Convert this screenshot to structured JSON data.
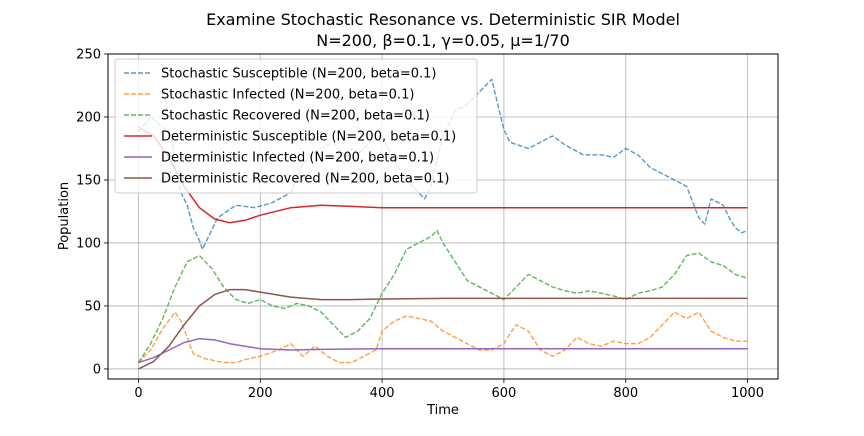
{
  "chart_data": {
    "type": "line",
    "title_line1": "Examine Stochastic Resonance vs. Deterministic SIR Model",
    "title_line2": "N=200, β=0.1, γ=0.05, μ=1/70",
    "xlabel": "Time",
    "ylabel": "Population",
    "xlim": [
      -50,
      1050
    ],
    "ylim": [
      -8,
      250
    ],
    "xticks": [
      0,
      200,
      400,
      600,
      800,
      1000
    ],
    "xtick_labels": [
      "0",
      "200",
      "400",
      "600",
      "800",
      "1000"
    ],
    "yticks": [
      0,
      50,
      100,
      150,
      200,
      250
    ],
    "ytick_labels": [
      "0",
      "50",
      "100",
      "150",
      "200",
      "250"
    ],
    "grid": true,
    "legend_position": "upper-left",
    "series": [
      {
        "name": "Stochastic Susceptible (N=200, beta=0.1)",
        "style": "dashed",
        "color": "#1f77b4",
        "x": [
          0,
          20,
          40,
          55,
          60,
          70,
          80,
          90,
          100,
          105,
          115,
          130,
          160,
          190,
          220,
          250,
          270,
          290,
          300,
          320,
          340,
          350,
          360,
          380,
          400,
          420,
          440,
          460,
          470,
          480,
          500,
          520,
          540,
          560,
          580,
          600,
          610,
          640,
          660,
          680,
          700,
          730,
          760,
          780,
          800,
          820,
          840,
          860,
          880,
          900,
          920,
          930,
          940,
          960,
          970,
          980,
          990,
          1000
        ],
        "values": [
          188,
          200,
          192,
          185,
          160,
          140,
          130,
          112,
          102,
          95,
          105,
          120,
          130,
          128,
          132,
          140,
          163,
          172,
          175,
          180,
          168,
          175,
          170,
          180,
          185,
          165,
          150,
          140,
          135,
          145,
          185,
          205,
          210,
          220,
          230,
          190,
          180,
          175,
          180,
          185,
          178,
          170,
          170,
          168,
          175,
          170,
          160,
          155,
          150,
          145,
          120,
          115,
          135,
          130,
          120,
          112,
          108,
          110
        ]
      },
      {
        "name": "Stochastic Infected (N=200, beta=0.1)",
        "style": "dashed",
        "color": "#ff7f0e",
        "x": [
          0,
          20,
          40,
          60,
          70,
          80,
          90,
          110,
          140,
          160,
          180,
          200,
          230,
          250,
          270,
          290,
          310,
          330,
          350,
          370,
          390,
          400,
          420,
          440,
          460,
          480,
          500,
          520,
          540,
          560,
          580,
          600,
          610,
          620,
          640,
          660,
          680,
          700,
          720,
          740,
          760,
          780,
          800,
          820,
          840,
          860,
          880,
          900,
          920,
          940,
          960,
          980,
          1000
        ],
        "values": [
          5,
          15,
          32,
          45,
          38,
          25,
          12,
          8,
          5,
          5,
          8,
          10,
          15,
          20,
          10,
          18,
          10,
          5,
          5,
          10,
          15,
          30,
          38,
          42,
          40,
          38,
          30,
          25,
          20,
          15,
          15,
          20,
          28,
          35,
          30,
          15,
          10,
          15,
          25,
          20,
          18,
          22,
          20,
          20,
          25,
          35,
          45,
          40,
          45,
          30,
          25,
          22,
          22
        ]
      },
      {
        "name": "Stochastic Recovered (N=200, beta=0.1)",
        "style": "dashed",
        "color": "#2ca02c",
        "x": [
          0,
          20,
          40,
          60,
          80,
          100,
          120,
          140,
          160,
          180,
          200,
          220,
          240,
          260,
          280,
          300,
          320,
          340,
          360,
          380,
          400,
          420,
          440,
          460,
          480,
          490,
          500,
          520,
          540,
          560,
          580,
          600,
          620,
          640,
          660,
          680,
          700,
          720,
          740,
          760,
          780,
          800,
          820,
          840,
          860,
          880,
          900,
          920,
          940,
          960,
          980,
          1000
        ],
        "values": [
          5,
          20,
          40,
          65,
          85,
          90,
          80,
          65,
          55,
          52,
          55,
          50,
          48,
          52,
          50,
          45,
          35,
          25,
          30,
          40,
          60,
          75,
          95,
          100,
          105,
          110,
          100,
          85,
          70,
          65,
          60,
          55,
          65,
          75,
          70,
          65,
          62,
          60,
          62,
          60,
          58,
          55,
          60,
          62,
          65,
          75,
          90,
          92,
          85,
          82,
          75,
          72
        ]
      },
      {
        "name": "Deterministic Susceptible (N=200, beta=0.1)",
        "style": "solid",
        "color": "#d62728",
        "x": [
          0,
          25,
          50,
          75,
          100,
          125,
          150,
          175,
          200,
          250,
          300,
          350,
          400,
          500,
          600,
          700,
          800,
          900,
          1000
        ],
        "values": [
          192,
          185,
          168,
          145,
          128,
          119,
          116,
          118,
          122,
          128,
          130,
          129,
          128,
          128,
          128,
          128,
          128,
          128,
          128
        ]
      },
      {
        "name": "Deterministic Infected (N=200, beta=0.1)",
        "style": "solid",
        "color": "#9467bd",
        "x": [
          0,
          25,
          50,
          75,
          100,
          125,
          150,
          175,
          200,
          250,
          300,
          350,
          400,
          500,
          600,
          700,
          800,
          900,
          1000
        ],
        "values": [
          5,
          9,
          15,
          21,
          24,
          23,
          20,
          18,
          16,
          15,
          15.5,
          15.8,
          16,
          16,
          16,
          16,
          16,
          16,
          16
        ]
      },
      {
        "name": "Deterministic Recovered (N=200, beta=0.1)",
        "style": "solid",
        "color": "#8c564b",
        "x": [
          0,
          25,
          50,
          75,
          100,
          125,
          150,
          175,
          200,
          250,
          300,
          350,
          400,
          500,
          600,
          700,
          800,
          900,
          1000
        ],
        "values": [
          0,
          6,
          18,
          35,
          50,
          59,
          63,
          63,
          61,
          57,
          55,
          55,
          55.5,
          56,
          56,
          56,
          56,
          56,
          56
        ]
      }
    ]
  }
}
